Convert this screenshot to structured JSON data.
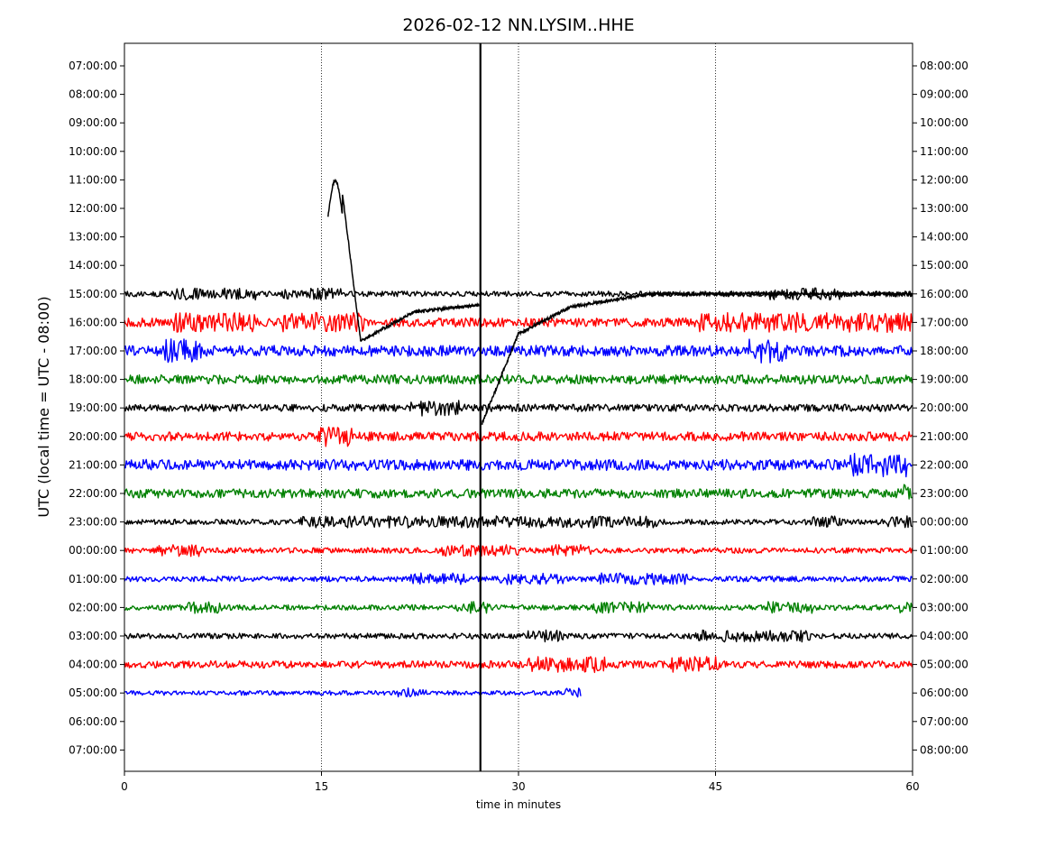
{
  "chart_data": {
    "type": "line",
    "title": "2026-02-12 NN.LYSIM..HHE",
    "xlabel": "time in minutes",
    "ylabel": "UTC (local time = UTC - 08:00)",
    "xlim": [
      0,
      60
    ],
    "x_ticks": [
      0,
      15,
      30,
      45,
      60
    ],
    "x_tick_labels": [
      "0",
      "15",
      "30",
      "45",
      "60"
    ],
    "vertical_gridlines": [
      15,
      30,
      45
    ],
    "left_tick_labels": [
      "07:00:00",
      "08:00:00",
      "09:00:00",
      "10:00:00",
      "11:00:00",
      "12:00:00",
      "13:00:00",
      "14:00:00",
      "15:00:00",
      "16:00:00",
      "17:00:00",
      "18:00:00",
      "19:00:00",
      "20:00:00",
      "21:00:00",
      "22:00:00",
      "23:00:00",
      "00:00:00",
      "01:00:00",
      "02:00:00",
      "03:00:00",
      "04:00:00",
      "05:00:00",
      "06:00:00",
      "07:00:00"
    ],
    "right_tick_labels": [
      "08:00:00",
      "09:00:00",
      "10:00:00",
      "11:00:00",
      "12:00:00",
      "13:00:00",
      "14:00:00",
      "15:00:00",
      "16:00:00",
      "17:00:00",
      "18:00:00",
      "19:00:00",
      "20:00:00",
      "21:00:00",
      "22:00:00",
      "23:00:00",
      "00:00:00",
      "01:00:00",
      "02:00:00",
      "03:00:00",
      "04:00:00",
      "05:00:00",
      "06:00:00",
      "07:00:00",
      "08:00:00"
    ],
    "event_marker_minute": 27.1,
    "colors": [
      "#ff0000",
      "#0000ff",
      "#008000",
      "#000000"
    ],
    "series": [
      {
        "name": "15:00:00",
        "row": 8,
        "color": "#000000",
        "amp": 3,
        "x_end": 60,
        "seed": 11
      },
      {
        "name": "16:00:00",
        "row": 9,
        "color": "#ff0000",
        "amp": 5,
        "x_end": 60,
        "seed": 12
      },
      {
        "name": "17:00:00",
        "row": 10,
        "color": "#0000ff",
        "amp": 6,
        "x_end": 60,
        "seed": 13
      },
      {
        "name": "18:00:00",
        "row": 11,
        "color": "#008000",
        "amp": 5,
        "x_end": 60,
        "seed": 14
      },
      {
        "name": "19:00:00",
        "row": 12,
        "color": "#000000",
        "amp": 4,
        "x_end": 60,
        "seed": 15
      },
      {
        "name": "20:00:00",
        "row": 13,
        "color": "#ff0000",
        "amp": 5,
        "x_end": 60,
        "seed": 16
      },
      {
        "name": "21:00:00",
        "row": 14,
        "color": "#0000ff",
        "amp": 6,
        "x_end": 60,
        "seed": 17
      },
      {
        "name": "22:00:00",
        "row": 15,
        "color": "#008000",
        "amp": 5,
        "x_end": 60,
        "seed": 18
      },
      {
        "name": "23:00:00",
        "row": 16,
        "color": "#000000",
        "amp": 3,
        "x_end": 60,
        "seed": 19
      },
      {
        "name": "00:00:00",
        "row": 17,
        "color": "#ff0000",
        "amp": 3,
        "x_end": 60,
        "seed": 20
      },
      {
        "name": "01:00:00",
        "row": 18,
        "color": "#0000ff",
        "amp": 3,
        "x_end": 60,
        "seed": 21
      },
      {
        "name": "02:00:00",
        "row": 19,
        "color": "#008000",
        "amp": 3,
        "x_end": 60,
        "seed": 22
      },
      {
        "name": "03:00:00",
        "row": 20,
        "color": "#000000",
        "amp": 3,
        "x_end": 60,
        "seed": 23
      },
      {
        "name": "04:00:00",
        "row": 21,
        "color": "#ff0000",
        "amp": 4,
        "x_end": 60,
        "seed": 24
      },
      {
        "name": "05:00:00",
        "row": 22,
        "color": "#0000ff",
        "amp": 2.5,
        "x_end": 34.8,
        "seed": 25
      }
    ]
  }
}
